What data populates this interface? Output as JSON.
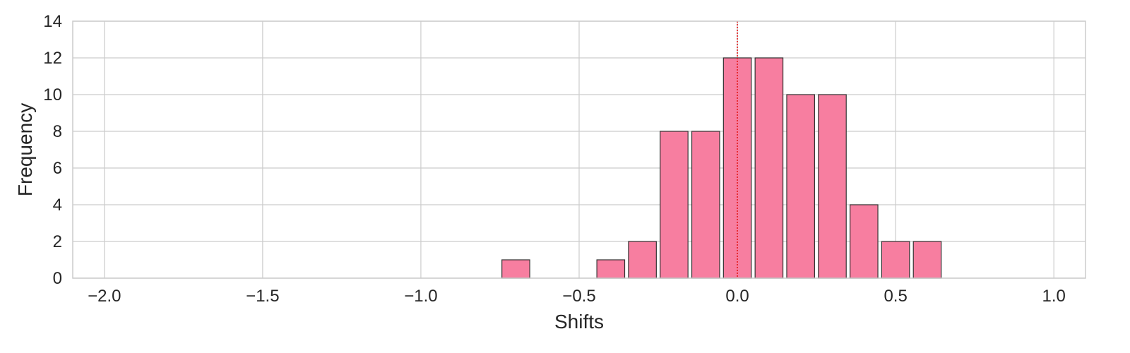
{
  "chart_data": {
    "type": "bar",
    "title": "",
    "xlabel": "Shifts",
    "ylabel": "Frequency",
    "xlim": [
      -2.1,
      1.1
    ],
    "ylim": [
      0,
      14
    ],
    "x_ticks": [
      -2.0,
      -1.5,
      -1.0,
      -0.5,
      0.0,
      0.5,
      1.0
    ],
    "x_tick_labels": [
      "−2.0",
      "−1.5",
      "−1.0",
      "−0.5",
      "0.0",
      "0.5",
      "1.0"
    ],
    "y_ticks": [
      0,
      2,
      4,
      6,
      8,
      10,
      12,
      14
    ],
    "y_tick_labels": [
      "0",
      "2",
      "4",
      "6",
      "8",
      "10",
      "12",
      "14"
    ],
    "bin_width": 0.1,
    "bars": [
      {
        "x_start": -0.75,
        "x_end": -0.65,
        "value": 1
      },
      {
        "x_start": -0.45,
        "x_end": -0.35,
        "value": 1
      },
      {
        "x_start": -0.35,
        "x_end": -0.25,
        "value": 2
      },
      {
        "x_start": -0.25,
        "x_end": -0.15,
        "value": 8
      },
      {
        "x_start": -0.15,
        "x_end": -0.05,
        "value": 8
      },
      {
        "x_start": -0.05,
        "x_end": 0.05,
        "value": 12
      },
      {
        "x_start": 0.05,
        "x_end": 0.15,
        "value": 12
      },
      {
        "x_start": 0.15,
        "x_end": 0.25,
        "value": 10
      },
      {
        "x_start": 0.25,
        "x_end": 0.35,
        "value": 10
      },
      {
        "x_start": 0.35,
        "x_end": 0.45,
        "value": 4
      },
      {
        "x_start": 0.45,
        "x_end": 0.55,
        "value": 2
      },
      {
        "x_start": 0.55,
        "x_end": 0.65,
        "value": 2
      }
    ],
    "reference_line": {
      "x": 0.0,
      "style": "dotted",
      "color": "#e31a1c"
    },
    "grid": true,
    "colors": {
      "bar_fill": "#f77ea0",
      "bar_edge": "#333333",
      "grid": "#cccccc",
      "axis_frame": "#cccccc",
      "text": "#262626"
    }
  }
}
